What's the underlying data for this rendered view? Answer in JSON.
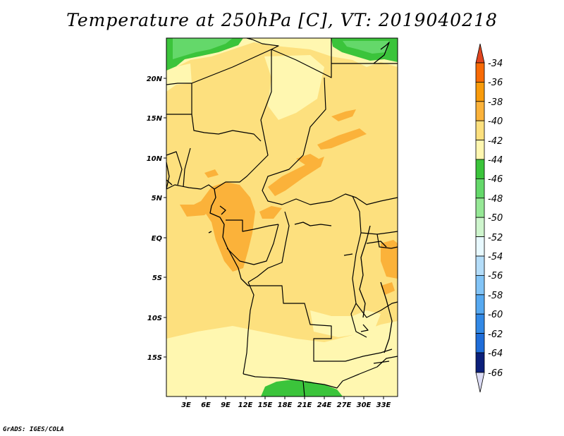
{
  "title": "Temperature at 250hPa [C], VT: 2019040218",
  "credit": "GrADS: IGES/COLA",
  "map": {
    "region": "Central Africa",
    "projection": "latlon",
    "lon_range": [
      0,
      35
    ],
    "lat_range": [
      -20,
      25
    ],
    "lat_ticks": [
      "20N",
      "15N",
      "10N",
      "5N",
      "EQ",
      "5S",
      "10S",
      "15S"
    ],
    "lon_ticks": [
      "3E",
      "6E",
      "9E",
      "12E",
      "15E",
      "18E",
      "21E",
      "24E",
      "27E",
      "30E",
      "33E"
    ],
    "background_fill": "#fde07e"
  },
  "colorbar": {
    "labels": [
      "-34",
      "-36",
      "-38",
      "-40",
      "-42",
      "-44",
      "-46",
      "-48",
      "-50",
      "-52",
      "-54",
      "-56",
      "-58",
      "-60",
      "-62",
      "-64",
      "-66"
    ],
    "colors": [
      "#e0451f",
      "#f86a05",
      "#f99b0b",
      "#fbb23a",
      "#fde07e",
      "#fff7b0",
      "#3bc43b",
      "#64d86a",
      "#96e896",
      "#cef5cd",
      "#e8f9ff",
      "#b4ddf9",
      "#82c4f7",
      "#56a9f1",
      "#3289e6",
      "#1f6dd9",
      "#1750b8",
      "#0b1f7a",
      "#dcdcf5"
    ]
  }
}
